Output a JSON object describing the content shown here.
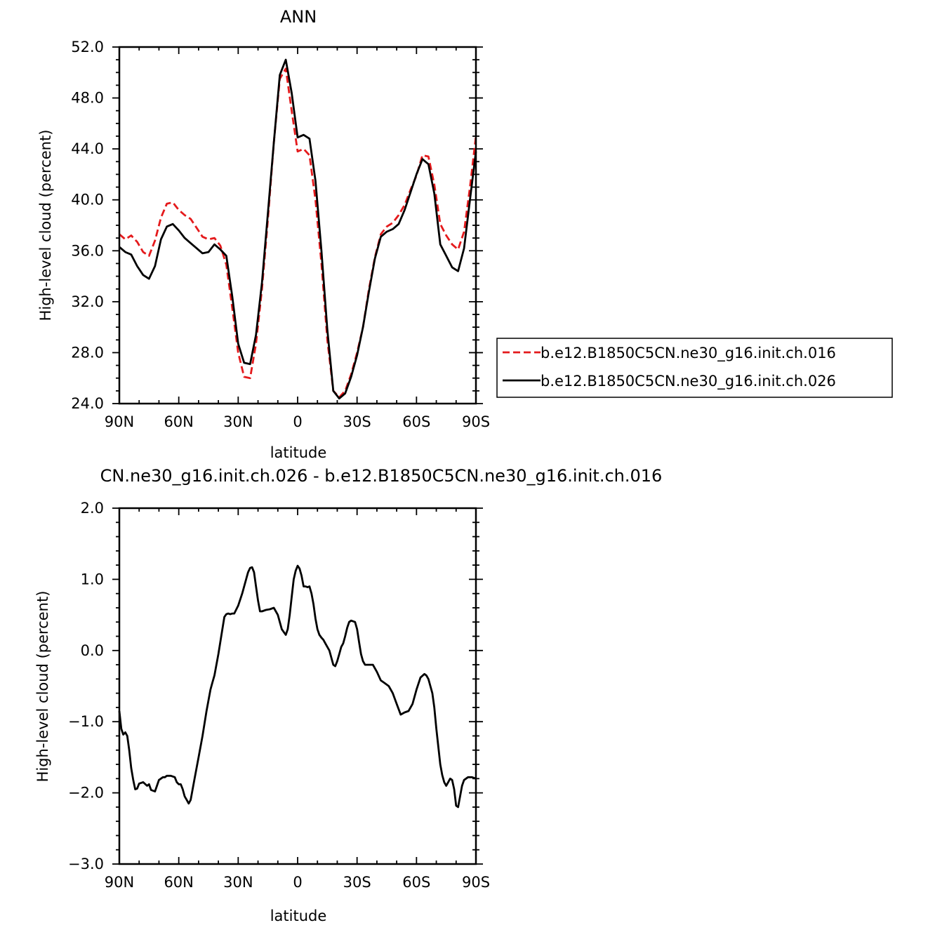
{
  "chart_data": [
    {
      "type": "line",
      "title": "ANN",
      "xlabel": "latitude",
      "ylabel": "High-level cloud (percent)",
      "xlim": [
        90,
        -90
      ],
      "ylim": [
        24,
        52
      ],
      "x_ticks": [
        {
          "value": 90,
          "label": "90N"
        },
        {
          "value": 60,
          "label": "60N"
        },
        {
          "value": 30,
          "label": "30N"
        },
        {
          "value": 0,
          "label": "0"
        },
        {
          "value": -30,
          "label": "30S"
        },
        {
          "value": -60,
          "label": "60S"
        },
        {
          "value": -90,
          "label": "90S"
        }
      ],
      "y_ticks": [
        {
          "value": 24,
          "label": "24.0"
        },
        {
          "value": 28,
          "label": "28.0"
        },
        {
          "value": 32,
          "label": "32.0"
        },
        {
          "value": 36,
          "label": "36.0"
        },
        {
          "value": 40,
          "label": "40.0"
        },
        {
          "value": 44,
          "label": "44.0"
        },
        {
          "value": 48,
          "label": "48.0"
        },
        {
          "value": 52,
          "label": "52.0"
        }
      ],
      "legend_position": "right",
      "series": [
        {
          "name": "b.e12.B1850C5CN.ne30_g16.init.ch.016",
          "color": "#e41a1c",
          "dash": "dashed",
          "x": [
            90,
            87,
            84,
            81,
            78,
            75,
            72,
            69,
            66,
            63,
            60,
            57,
            54,
            51,
            48,
            45,
            42,
            39,
            36,
            33,
            30,
            27,
            24,
            21,
            18,
            15,
            12,
            9,
            6,
            3,
            0,
            -3,
            -6,
            -9,
            -12,
            -15,
            -18,
            -21,
            -24,
            -27,
            -30,
            -33,
            -36,
            -39,
            -42,
            -45,
            -48,
            -51,
            -54,
            -57,
            -60,
            -63,
            -66,
            -69,
            -72,
            -75,
            -78,
            -81,
            -84,
            -87,
            -90
          ],
          "y": [
            37.3,
            36.9,
            37.2,
            36.7,
            35.9,
            35.6,
            36.8,
            38.6,
            39.7,
            39.8,
            39.2,
            38.8,
            38.5,
            37.8,
            37.1,
            36.9,
            37.0,
            36.4,
            34.9,
            31.5,
            28.0,
            26.1,
            26.0,
            28.7,
            33.0,
            38.5,
            44.5,
            49.5,
            50.3,
            47.0,
            43.8,
            44.0,
            43.5,
            40.0,
            35.0,
            29.0,
            25.0,
            24.5,
            25.0,
            26.3,
            28.0,
            30.0,
            33.0,
            35.5,
            37.3,
            37.9,
            38.2,
            38.8,
            39.6,
            40.8,
            41.9,
            43.5,
            43.4,
            41.2,
            38.1,
            37.2,
            36.5,
            36.1,
            37.5,
            41.0,
            45.0
          ]
        },
        {
          "name": "b.e12.B1850C5CN.ne30_g16.init.ch.026",
          "color": "#000000",
          "dash": "solid",
          "x": [
            90,
            87,
            84,
            81,
            78,
            75,
            72,
            69,
            66,
            63,
            60,
            57,
            54,
            51,
            48,
            45,
            42,
            39,
            36,
            33,
            30,
            27,
            24,
            21,
            18,
            15,
            12,
            9,
            6,
            3,
            0,
            -3,
            -6,
            -9,
            -12,
            -15,
            -18,
            -21,
            -24,
            -27,
            -30,
            -33,
            -36,
            -39,
            -42,
            -45,
            -48,
            -51,
            -54,
            -57,
            -60,
            -63,
            -66,
            -69,
            -72,
            -75,
            -78,
            -81,
            -84,
            -87,
            -90
          ],
          "y": [
            36.3,
            35.9,
            35.7,
            34.8,
            34.1,
            33.8,
            34.8,
            36.9,
            37.9,
            38.1,
            37.6,
            37.0,
            36.6,
            36.2,
            35.8,
            35.9,
            36.5,
            36.1,
            35.6,
            32.4,
            28.7,
            27.2,
            27.1,
            29.4,
            33.5,
            39.0,
            44.5,
            49.8,
            51.0,
            48.4,
            44.9,
            45.1,
            44.8,
            41.5,
            36.0,
            29.8,
            25.0,
            24.4,
            24.8,
            26.1,
            27.8,
            30.0,
            32.8,
            35.4,
            37.1,
            37.5,
            37.7,
            38.1,
            39.2,
            40.6,
            42.0,
            43.2,
            42.8,
            40.5,
            36.5,
            35.6,
            34.7,
            34.4,
            36.2,
            40.0,
            43.8
          ]
        }
      ]
    },
    {
      "type": "line",
      "title": "CN.ne30_g16.init.ch.026 - b.e12.B1850C5CN.ne30_g16.init.ch.016",
      "xlabel": "latitude",
      "ylabel": "High-level cloud (percent)",
      "xlim": [
        90,
        -90
      ],
      "ylim": [
        -3,
        2
      ],
      "x_ticks": [
        {
          "value": 90,
          "label": "90N"
        },
        {
          "value": 60,
          "label": "60N"
        },
        {
          "value": 30,
          "label": "30N"
        },
        {
          "value": 0,
          "label": "0"
        },
        {
          "value": -30,
          "label": "30S"
        },
        {
          "value": -60,
          "label": "60S"
        },
        {
          "value": -90,
          "label": "90S"
        }
      ],
      "y_ticks": [
        {
          "value": -3,
          "label": "−3.0"
        },
        {
          "value": -2,
          "label": "−2.0"
        },
        {
          "value": -1,
          "label": "−1.0"
        },
        {
          "value": 0,
          "label": "0.0"
        },
        {
          "value": 1,
          "label": "1.0"
        },
        {
          "value": 2,
          "label": "2.0"
        }
      ],
      "series": [
        {
          "color": "#000000",
          "dash": "solid",
          "x": [
            90,
            89,
            88,
            87,
            86,
            85,
            84,
            83,
            82,
            81,
            80,
            78,
            76,
            75,
            74,
            72,
            71,
            70,
            68,
            67,
            66,
            64,
            62,
            61,
            60,
            59,
            58,
            57,
            56,
            55,
            54,
            53,
            52,
            50,
            48,
            46,
            44,
            43,
            42,
            40,
            38,
            37,
            36,
            35,
            34,
            33,
            32,
            30,
            28,
            26,
            25,
            24,
            23,
            22,
            21,
            20,
            19,
            18,
            16,
            14,
            12,
            10,
            8,
            6,
            5,
            4,
            3,
            2,
            1,
            0,
            -1,
            -2,
            -3,
            -4,
            -5,
            -6,
            -7,
            -8,
            -9,
            -10,
            -11,
            -12,
            -13,
            -14,
            -16,
            -18,
            -19,
            -20,
            -21,
            -22,
            -23,
            -24,
            -25,
            -26,
            -27,
            -28,
            -29,
            -30,
            -31,
            -32,
            -33,
            -34,
            -35,
            -36,
            -37,
            -38,
            -40,
            -42,
            -44,
            -46,
            -48,
            -50,
            -52,
            -54,
            -56,
            -58,
            -60,
            -62,
            -64,
            -65,
            -66,
            -67,
            -68,
            -69,
            -70,
            -71,
            -72,
            -73,
            -74,
            -75,
            -76,
            -77,
            -78,
            -79,
            -80,
            -81,
            -82,
            -83,
            -84,
            -85,
            -86,
            -87,
            -88,
            -89,
            -90
          ],
          "y": [
            -0.85,
            -1.1,
            -1.18,
            -1.15,
            -1.2,
            -1.4,
            -1.65,
            -1.82,
            -1.95,
            -1.94,
            -1.87,
            -1.85,
            -1.9,
            -1.88,
            -1.96,
            -1.98,
            -1.9,
            -1.82,
            -1.78,
            -1.78,
            -1.76,
            -1.76,
            -1.78,
            -1.85,
            -1.88,
            -1.88,
            -1.95,
            -2.05,
            -2.1,
            -2.15,
            -2.1,
            -1.95,
            -1.8,
            -1.5,
            -1.2,
            -0.85,
            -0.55,
            -0.45,
            -0.35,
            -0.05,
            0.3,
            0.47,
            0.51,
            0.52,
            0.51,
            0.52,
            0.52,
            0.63,
            0.8,
            1.0,
            1.1,
            1.16,
            1.17,
            1.1,
            0.9,
            0.7,
            0.55,
            0.55,
            0.57,
            0.58,
            0.6,
            0.5,
            0.3,
            0.22,
            0.3,
            0.5,
            0.75,
            1.0,
            1.12,
            1.19,
            1.15,
            1.05,
            0.9,
            0.9,
            0.89,
            0.9,
            0.8,
            0.65,
            0.45,
            0.3,
            0.22,
            0.18,
            0.15,
            0.1,
            0.0,
            -0.2,
            -0.22,
            -0.15,
            -0.05,
            0.05,
            0.1,
            0.2,
            0.32,
            0.4,
            0.42,
            0.41,
            0.4,
            0.3,
            0.12,
            -0.05,
            -0.15,
            -0.2,
            -0.2,
            -0.2,
            -0.2,
            -0.2,
            -0.3,
            -0.42,
            -0.46,
            -0.5,
            -0.6,
            -0.75,
            -0.9,
            -0.87,
            -0.85,
            -0.75,
            -0.55,
            -0.38,
            -0.33,
            -0.35,
            -0.4,
            -0.5,
            -0.6,
            -0.8,
            -1.1,
            -1.35,
            -1.6,
            -1.75,
            -1.85,
            -1.9,
            -1.85,
            -1.8,
            -1.82,
            -1.95,
            -2.18,
            -2.2,
            -2.05,
            -1.9,
            -1.82,
            -1.8,
            -1.78,
            -1.78,
            -1.78,
            -1.79,
            -1.8
          ]
        }
      ]
    }
  ]
}
